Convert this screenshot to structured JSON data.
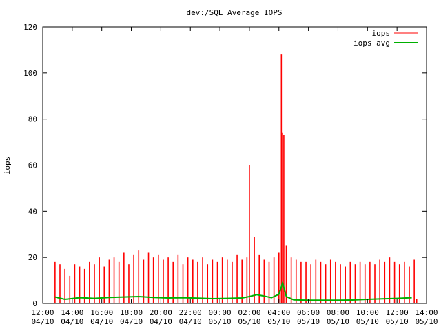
{
  "chart_data": {
    "type": "line",
    "title": "dev:/SQL Average IOPS",
    "ylabel": "iops",
    "xlabel": "",
    "ylim": [
      0,
      120
    ],
    "yticks": [
      0,
      20,
      40,
      60,
      80,
      100,
      120
    ],
    "xlim": [
      "04/10 12:00",
      "05/10 14:00"
    ],
    "xticks": [
      {
        "time": "12:00",
        "date": "04/10"
      },
      {
        "time": "14:00",
        "date": "04/10"
      },
      {
        "time": "16:00",
        "date": "04/10"
      },
      {
        "time": "18:00",
        "date": "04/10"
      },
      {
        "time": "20:00",
        "date": "04/10"
      },
      {
        "time": "22:00",
        "date": "04/10"
      },
      {
        "time": "00:00",
        "date": "05/10"
      },
      {
        "time": "02:00",
        "date": "05/10"
      },
      {
        "time": "04:00",
        "date": "05/10"
      },
      {
        "time": "06:00",
        "date": "05/10"
      },
      {
        "time": "08:00",
        "date": "05/10"
      },
      {
        "time": "10:00",
        "date": "05/10"
      },
      {
        "time": "12:00",
        "date": "05/10"
      },
      {
        "time": "14:00",
        "date": "05/10"
      }
    ],
    "legend_position": "top-right",
    "grid": false,
    "series": [
      {
        "name": "iops",
        "color": "#ff0000",
        "style": "impulses",
        "x": [
          "04/10 12:50",
          "04/10 13:10",
          "04/10 13:30",
          "04/10 13:50",
          "04/10 14:10",
          "04/10 14:30",
          "04/10 14:50",
          "04/10 15:10",
          "04/10 15:30",
          "04/10 15:50",
          "04/10 16:10",
          "04/10 16:30",
          "04/10 16:50",
          "04/10 17:10",
          "04/10 17:30",
          "04/10 17:50",
          "04/10 18:10",
          "04/10 18:30",
          "04/10 18:50",
          "04/10 19:10",
          "04/10 19:30",
          "04/10 19:50",
          "04/10 20:10",
          "04/10 20:30",
          "04/10 20:50",
          "04/10 21:10",
          "04/10 21:30",
          "04/10 21:50",
          "04/10 22:10",
          "04/10 22:30",
          "04/10 22:50",
          "04/10 23:10",
          "04/10 23:30",
          "04/10 23:50",
          "05/10 00:10",
          "05/10 00:30",
          "05/10 00:50",
          "05/10 01:10",
          "05/10 01:30",
          "05/10 01:50",
          "05/10 02:00",
          "05/10 02:20",
          "05/10 02:40",
          "05/10 03:00",
          "05/10 03:20",
          "05/10 03:40",
          "05/10 04:00",
          "05/10 04:10",
          "05/10 04:15",
          "05/10 04:20",
          "05/10 04:30",
          "05/10 04:50",
          "05/10 05:10",
          "05/10 05:30",
          "05/10 05:50",
          "05/10 06:10",
          "05/10 06:30",
          "05/10 06:50",
          "05/10 07:10",
          "05/10 07:30",
          "05/10 07:50",
          "05/10 08:10",
          "05/10 08:30",
          "05/10 08:50",
          "05/10 09:10",
          "05/10 09:30",
          "05/10 09:50",
          "05/10 10:10",
          "05/10 10:30",
          "05/10 10:50",
          "05/10 11:10",
          "05/10 11:30",
          "05/10 11:50",
          "05/10 12:10",
          "05/10 12:30",
          "05/10 12:50",
          "05/10 13:10",
          "05/10 13:20"
        ],
        "y": [
          18,
          17,
          15,
          12,
          17,
          16,
          15,
          18,
          17,
          20,
          16,
          19,
          20,
          18,
          22,
          17,
          21,
          23,
          19,
          22,
          20,
          21,
          19,
          20,
          18,
          21,
          17,
          20,
          19,
          18,
          20,
          17,
          19,
          18,
          20,
          19,
          18,
          21,
          19,
          20,
          60,
          29,
          21,
          19,
          18,
          20,
          22,
          108,
          74,
          73,
          25,
          20,
          19,
          18,
          18,
          17,
          19,
          18,
          17,
          19,
          18,
          17,
          16,
          18,
          17,
          18,
          17,
          18,
          17,
          19,
          18,
          20,
          18,
          17,
          18,
          16,
          19,
          2
        ]
      },
      {
        "name": "iops avg",
        "color": "#00b000",
        "style": "line",
        "x": [
          "04/10 12:50",
          "04/10 13:30",
          "04/10 14:30",
          "04/10 15:30",
          "04/10 16:30",
          "04/10 17:30",
          "04/10 18:30",
          "04/10 19:30",
          "04/10 20:30",
          "04/10 21:30",
          "04/10 22:30",
          "04/10 23:30",
          "05/10 00:30",
          "05/10 01:30",
          "05/10 02:00",
          "05/10 02:30",
          "05/10 03:00",
          "05/10 03:30",
          "05/10 04:00",
          "05/10 04:15",
          "05/10 04:30",
          "05/10 05:00",
          "05/10 06:00",
          "05/10 07:00",
          "05/10 08:00",
          "05/10 09:00",
          "05/10 10:00",
          "05/10 11:00",
          "05/10 12:00",
          "05/10 13:00"
        ],
        "y": [
          2.8,
          1.8,
          2.5,
          2.2,
          2.6,
          2.8,
          3,
          2.6,
          2.4,
          2.5,
          2.3,
          2.1,
          2.2,
          2.4,
          3,
          3.8,
          3.2,
          2.5,
          4,
          9,
          3,
          1.6,
          1.4,
          1.4,
          1.4,
          1.5,
          1.8,
          2,
          2.2,
          2.5
        ]
      }
    ]
  }
}
